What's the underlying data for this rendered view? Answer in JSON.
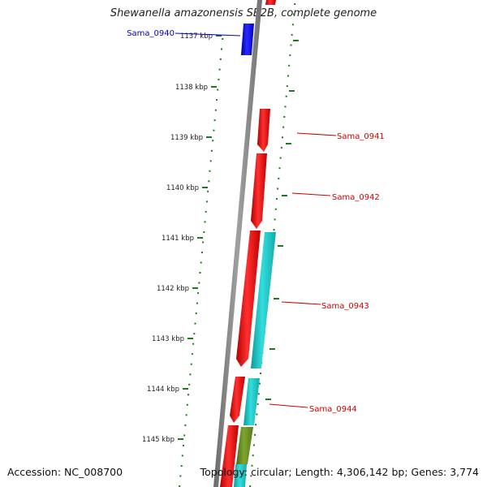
{
  "title": "Shewanella amazonensis SB2B, complete genome",
  "accession": "Accession: NC_008700",
  "summary": "Topology: circular; Length: 4,306,142 bp; Genes: 3,774",
  "kbp_labels": [
    "1137 kbp",
    "1138 kbp",
    "1139 kbp",
    "1140 kbp",
    "1141 kbp",
    "1142 kbp",
    "1143 kbp",
    "1144 kbp",
    "1145 kbp"
  ],
  "gene_labels": [
    {
      "text": "Sama_0940",
      "color": "#0000cc"
    },
    {
      "text": "Sama_0941",
      "color": "#cc0000"
    },
    {
      "text": "Sama_0942",
      "color": "#cc0000"
    },
    {
      "text": "Sama_0943",
      "color": "#cc0000"
    },
    {
      "text": "Sama_0944",
      "color": "#cc0000"
    }
  ],
  "colors": {
    "backbone": "#8a8a8a",
    "forward_gene": "#ff1a1a",
    "reverse_gene": "#1a1aff",
    "cyan_feature": "#22cccc",
    "olive_feature": "#6b8e23",
    "tick": "#1e7a1e"
  }
}
